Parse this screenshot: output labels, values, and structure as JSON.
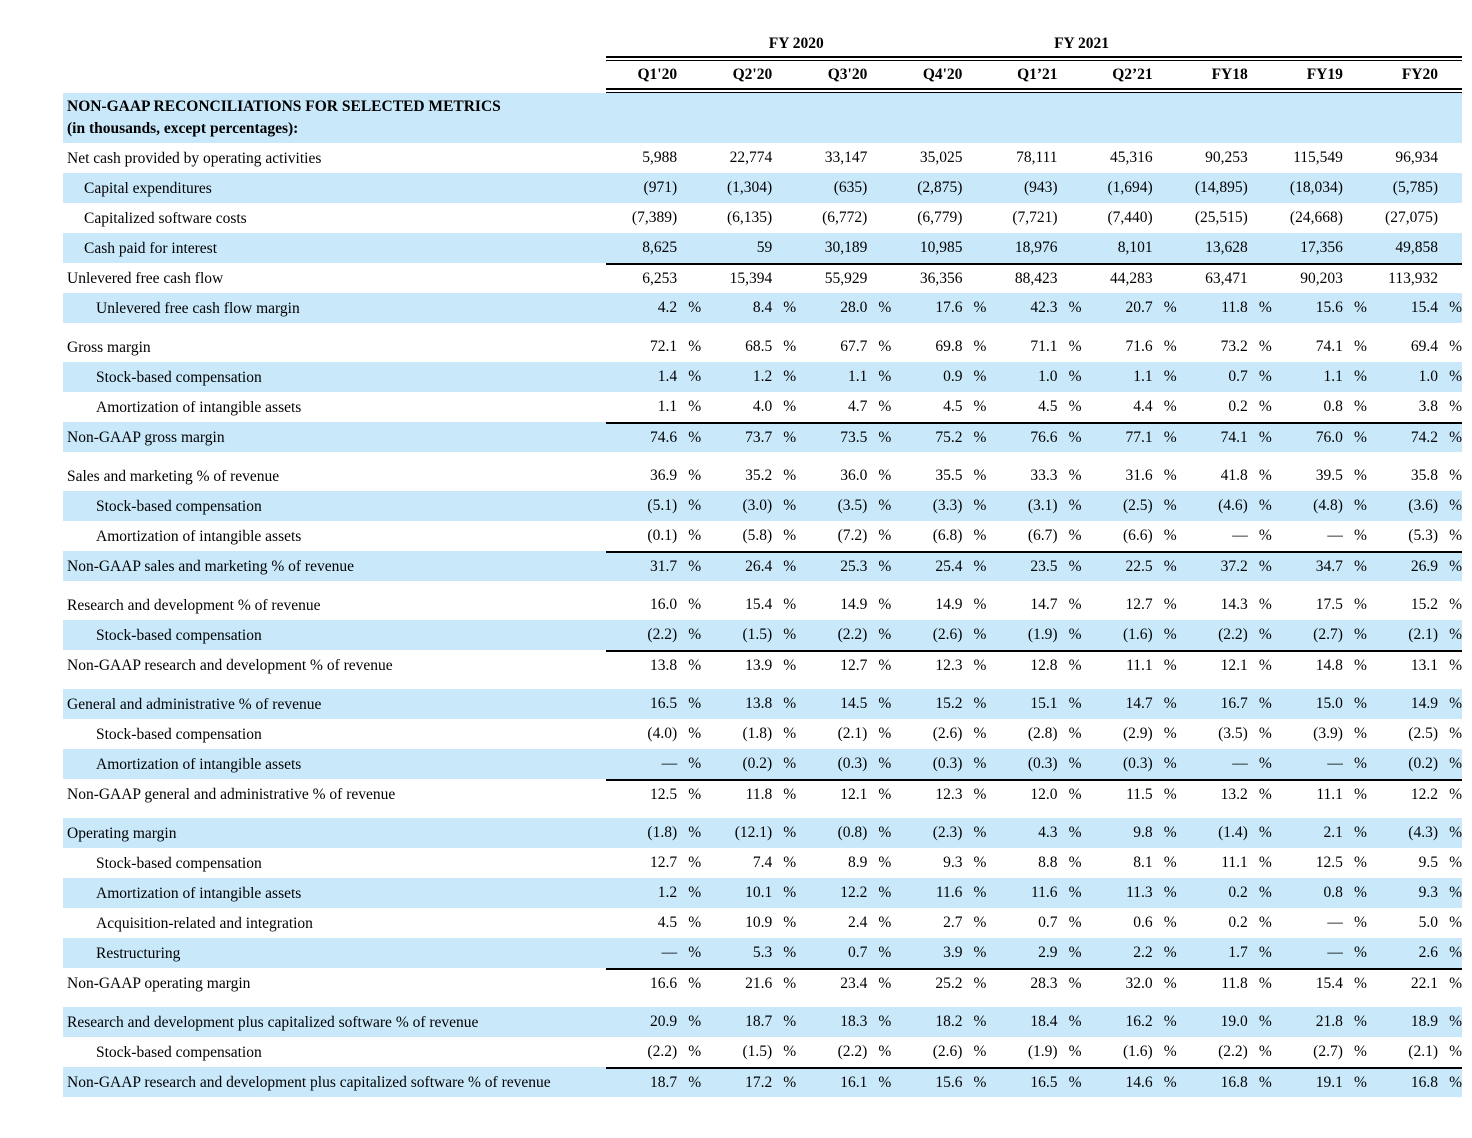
{
  "colors": {
    "stripe": "#c9e9fb",
    "rule": "#000000",
    "text": "#000000"
  },
  "table": {
    "title_line1": "NON-GAAP RECONCILIATIONS FOR SELECTED METRICS",
    "title_line2": "(in thousands, except percentages):",
    "group_headers": [
      {
        "label": "FY 2020",
        "span": 4
      },
      {
        "label": "FY 2021",
        "span": 2
      },
      {
        "label": "",
        "span": 3
      }
    ],
    "columns": [
      "Q1'20",
      "Q2'20",
      "Q3'20",
      "Q4'20",
      "Q1’21",
      "Q2’21",
      "FY18",
      "FY19",
      "FY20"
    ],
    "sections": [
      {
        "rows": [
          {
            "label": "Net cash provided by operating activities",
            "indent": 0,
            "shade": false,
            "values": [
              "5,988",
              "22,774",
              "33,147",
              "35,025",
              "78,111",
              "45,316",
              "90,253",
              "115,549",
              "96,934"
            ]
          },
          {
            "label": "Capital expenditures",
            "indent": 1,
            "shade": true,
            "values": [
              "(971)",
              "(1,304)",
              "(635)",
              "(2,875)",
              "(943)",
              "(1,694)",
              "(14,895)",
              "(18,034)",
              "(5,785)"
            ]
          },
          {
            "label": "Capitalized software costs",
            "indent": 1,
            "shade": false,
            "values": [
              "(7,389)",
              "(6,135)",
              "(6,772)",
              "(6,779)",
              "(7,721)",
              "(7,440)",
              "(25,515)",
              "(24,668)",
              "(27,075)"
            ]
          },
          {
            "label": "Cash paid for interest",
            "indent": 1,
            "shade": true,
            "values": [
              "8,625",
              "59",
              "30,189",
              "10,985",
              "18,976",
              "8,101",
              "13,628",
              "17,356",
              "49,858"
            ]
          },
          {
            "label": "Unlevered free cash flow",
            "indent": 0,
            "shade": false,
            "rule": true,
            "values": [
              "6,253",
              "15,394",
              "55,929",
              "36,356",
              "88,423",
              "44,283",
              "63,471",
              "90,203",
              "113,932"
            ]
          },
          {
            "label": "Unlevered free cash flow margin",
            "indent": 2,
            "shade": true,
            "unit": "%",
            "values": [
              "4.2",
              "8.4",
              "28.0",
              "17.6",
              "42.3",
              "20.7",
              "11.8",
              "15.6",
              "15.4"
            ]
          }
        ]
      },
      {
        "rows": [
          {
            "label": "Gross margin",
            "indent": 0,
            "shade": false,
            "unit": "%",
            "values": [
              "72.1",
              "68.5",
              "67.7",
              "69.8",
              "71.1",
              "71.6",
              "73.2",
              "74.1",
              "69.4"
            ]
          },
          {
            "label": "Stock-based compensation",
            "indent": 2,
            "shade": true,
            "unit": "%",
            "values": [
              "1.4",
              "1.2",
              "1.1",
              "0.9",
              "1.0",
              "1.1",
              "0.7",
              "1.1",
              "1.0"
            ]
          },
          {
            "label": "Amortization of intangible assets",
            "indent": 2,
            "shade": false,
            "unit": "%",
            "values": [
              "1.1",
              "4.0",
              "4.7",
              "4.5",
              "4.5",
              "4.4",
              "0.2",
              "0.8",
              "3.8"
            ]
          },
          {
            "label": "Non-GAAP gross margin",
            "indent": 0,
            "shade": true,
            "rule": true,
            "unit": "%",
            "values": [
              "74.6",
              "73.7",
              "73.5",
              "75.2",
              "76.6",
              "77.1",
              "74.1",
              "76.0",
              "74.2"
            ]
          }
        ]
      },
      {
        "rows": [
          {
            "label": "Sales and marketing % of revenue",
            "indent": 0,
            "shade": false,
            "unit": "%",
            "values": [
              "36.9",
              "35.2",
              "36.0",
              "35.5",
              "33.3",
              "31.6",
              "41.8",
              "39.5",
              "35.8"
            ]
          },
          {
            "label": "Stock-based compensation",
            "indent": 2,
            "shade": true,
            "unit": "%",
            "values": [
              "(5.1)",
              "(3.0)",
              "(3.5)",
              "(3.3)",
              "(3.1)",
              "(2.5)",
              "(4.6)",
              "(4.8)",
              "(3.6)"
            ]
          },
          {
            "label": "Amortization of intangible assets",
            "indent": 2,
            "shade": false,
            "unit": "%",
            "values": [
              "(0.1)",
              "(5.8)",
              "(7.2)",
              "(6.8)",
              "(6.7)",
              "(6.6)",
              "—",
              "—",
              "(5.3)"
            ]
          },
          {
            "label": "Non-GAAP sales and marketing % of revenue",
            "indent": 0,
            "shade": true,
            "rule": true,
            "unit": "%",
            "values": [
              "31.7",
              "26.4",
              "25.3",
              "25.4",
              "23.5",
              "22.5",
              "37.2",
              "34.7",
              "26.9"
            ]
          }
        ]
      },
      {
        "rows": [
          {
            "label": "Research and development % of revenue",
            "indent": 0,
            "shade": false,
            "unit": "%",
            "values": [
              "16.0",
              "15.4",
              "14.9",
              "14.9",
              "14.7",
              "12.7",
              "14.3",
              "17.5",
              "15.2"
            ]
          },
          {
            "label": "Stock-based compensation",
            "indent": 2,
            "shade": true,
            "unit": "%",
            "values": [
              "(2.2)",
              "(1.5)",
              "(2.2)",
              "(2.6)",
              "(1.9)",
              "(1.6)",
              "(2.2)",
              "(2.7)",
              "(2.1)"
            ]
          },
          {
            "label": "Non-GAAP research and development % of revenue",
            "indent": 0,
            "shade": false,
            "rule": true,
            "unit": "%",
            "values": [
              "13.8",
              "13.9",
              "12.7",
              "12.3",
              "12.8",
              "11.1",
              "12.1",
              "14.8",
              "13.1"
            ]
          }
        ]
      },
      {
        "rows": [
          {
            "label": "General and administrative % of revenue",
            "indent": 0,
            "shade": true,
            "unit": "%",
            "values": [
              "16.5",
              "13.8",
              "14.5",
              "15.2",
              "15.1",
              "14.7",
              "16.7",
              "15.0",
              "14.9"
            ]
          },
          {
            "label": "Stock-based compensation",
            "indent": 2,
            "shade": false,
            "unit": "%",
            "values": [
              "(4.0)",
              "(1.8)",
              "(2.1)",
              "(2.6)",
              "(2.8)",
              "(2.9)",
              "(3.5)",
              "(3.9)",
              "(2.5)"
            ]
          },
          {
            "label": "Amortization of intangible assets",
            "indent": 2,
            "shade": true,
            "unit": "%",
            "values": [
              "—",
              "(0.2)",
              "(0.3)",
              "(0.3)",
              "(0.3)",
              "(0.3)",
              "—",
              "—",
              "(0.2)"
            ]
          },
          {
            "label": "Non-GAAP general and administrative % of revenue",
            "indent": 0,
            "shade": false,
            "rule": true,
            "unit": "%",
            "values": [
              "12.5",
              "11.8",
              "12.1",
              "12.3",
              "12.0",
              "11.5",
              "13.2",
              "11.1",
              "12.2"
            ]
          }
        ]
      },
      {
        "rows": [
          {
            "label": "Operating margin",
            "indent": 0,
            "shade": true,
            "unit": "%",
            "values": [
              "(1.8)",
              "(12.1)",
              "(0.8)",
              "(2.3)",
              "4.3",
              "9.8",
              "(1.4)",
              "2.1",
              "(4.3)"
            ]
          },
          {
            "label": "Stock-based compensation",
            "indent": 2,
            "shade": false,
            "unit": "%",
            "values": [
              "12.7",
              "7.4",
              "8.9",
              "9.3",
              "8.8",
              "8.1",
              "11.1",
              "12.5",
              "9.5"
            ]
          },
          {
            "label": "Amortization of intangible assets",
            "indent": 2,
            "shade": true,
            "unit": "%",
            "values": [
              "1.2",
              "10.1",
              "12.2",
              "11.6",
              "11.6",
              "11.3",
              "0.2",
              "0.8",
              "9.3"
            ]
          },
          {
            "label": "Acquisition-related and integration",
            "indent": 2,
            "shade": false,
            "unit": "%",
            "values": [
              "4.5",
              "10.9",
              "2.4",
              "2.7",
              "0.7",
              "0.6",
              "0.2",
              "—",
              "5.0"
            ]
          },
          {
            "label": "Restructuring",
            "indent": 2,
            "shade": true,
            "unit": "%",
            "values": [
              "—",
              "5.3",
              "0.7",
              "3.9",
              "2.9",
              "2.2",
              "1.7",
              "—",
              "2.6"
            ]
          },
          {
            "label": "Non-GAAP operating margin",
            "indent": 0,
            "shade": false,
            "rule": true,
            "unit": "%",
            "values": [
              "16.6",
              "21.6",
              "23.4",
              "25.2",
              "28.3",
              "32.0",
              "11.8",
              "15.4",
              "22.1"
            ]
          }
        ]
      },
      {
        "rows": [
          {
            "label": "Research and development plus capitalized software % of revenue",
            "indent": 0,
            "shade": true,
            "unit": "%",
            "values": [
              "20.9",
              "18.7",
              "18.3",
              "18.2",
              "18.4",
              "16.2",
              "19.0",
              "21.8",
              "18.9"
            ]
          },
          {
            "label": "Stock-based compensation",
            "indent": 2,
            "shade": false,
            "unit": "%",
            "values": [
              "(2.2)",
              "(1.5)",
              "(2.2)",
              "(2.6)",
              "(1.9)",
              "(1.6)",
              "(2.2)",
              "(2.7)",
              "(2.1)"
            ]
          },
          {
            "label": "Non-GAAP research and development plus capitalized software % of revenue",
            "indent": 0,
            "shade": true,
            "rule": true,
            "unit": "%",
            "values": [
              "18.7",
              "17.2",
              "16.1",
              "15.6",
              "16.5",
              "14.6",
              "16.8",
              "19.1",
              "16.8"
            ]
          }
        ]
      }
    ]
  }
}
